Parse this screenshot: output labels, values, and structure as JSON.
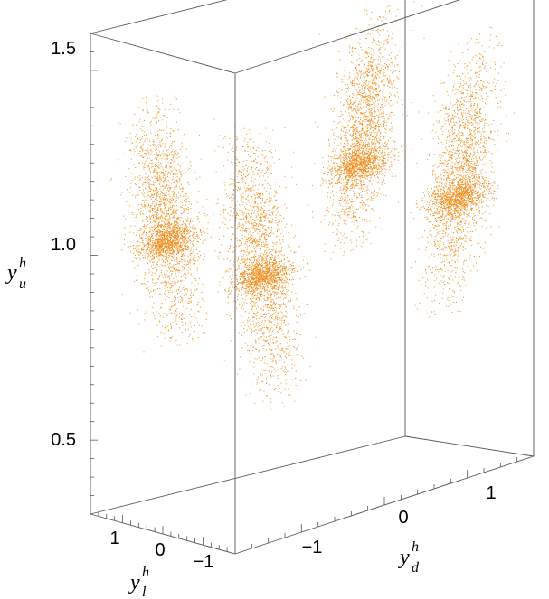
{
  "chart_data": {
    "type": "scatter",
    "dimensions": 3,
    "axes": {
      "x": {
        "name": "y_d^h",
        "base": "y",
        "sup": "h",
        "sub": "d",
        "ticks": [
          -1,
          0,
          1
        ],
        "tick_labels": [
          "−1",
          "0",
          "1"
        ],
        "range": [
          -1.8,
          1.8
        ]
      },
      "y": {
        "name": "y_l^h",
        "base": "y",
        "sup": "h",
        "sub": "l",
        "ticks": [
          1,
          0,
          -1
        ],
        "tick_labels": [
          "1",
          "0",
          "−1"
        ],
        "range": [
          -1.8,
          1.8
        ]
      },
      "z": {
        "name": "y_u^h",
        "base": "y",
        "sup": "h",
        "sub": "u",
        "ticks": [
          0.5,
          1.0,
          1.5
        ],
        "tick_labels": [
          "0.5",
          "1.0",
          "1.5"
        ],
        "range": [
          0.3,
          1.6
        ]
      }
    },
    "series": [
      {
        "color": "#F28A16",
        "point_count": 11000,
        "clusters": [
          {
            "y_d_h": -1.2,
            "y_l_h": 1.2,
            "y_u_h_min": 0.72,
            "y_u_h_max": 1.42,
            "dense_band_y_u_h": 1.01
          },
          {
            "y_d_h": -1.2,
            "y_l_h": -1.2,
            "y_u_h_min": 0.62,
            "y_u_h_max": 1.42,
            "dense_band_y_u_h": 0.99
          },
          {
            "y_d_h": 1.2,
            "y_l_h": 1.2,
            "y_u_h_min": 0.82,
            "y_u_h_max": 1.45,
            "dense_band_y_u_h": 1.05
          },
          {
            "y_d_h": 1.2,
            "y_l_h": -1.2,
            "y_u_h_min": 0.72,
            "y_u_h_max": 1.46,
            "dense_band_y_u_h": 1.03
          }
        ]
      }
    ],
    "box": true,
    "grid": false
  }
}
